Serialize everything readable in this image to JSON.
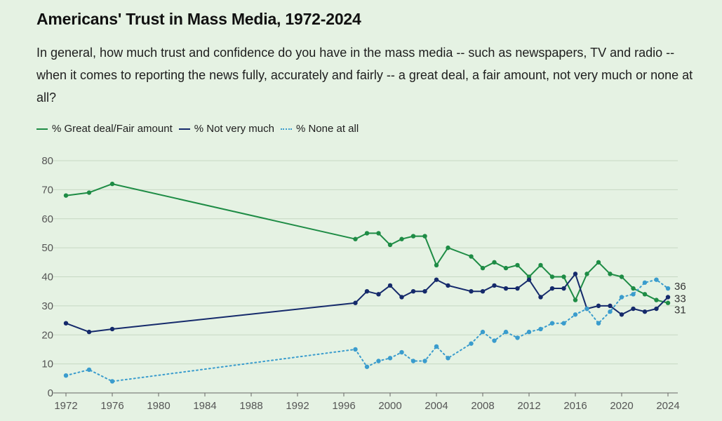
{
  "header": {
    "title": "Americans' Trust in Mass Media, 1972-2024",
    "subtitle": "In general, how much trust and confidence do you have in the mass media -- such as newspapers, TV and radio -- when it comes to reporting the news fully, accurately and fairly -- a great deal, a fair amount, not very much or none at all?"
  },
  "colors": {
    "great_deal": "#1e8c45",
    "not_very_much": "#152a6b",
    "none_at_all": "#3a9ccd",
    "grid": "#c6d8c3"
  },
  "chart_data": {
    "type": "line",
    "title": "Americans' Trust in Mass Media, 1972-2024",
    "xlabel": "",
    "ylabel": "",
    "xlim": [
      1972,
      2024
    ],
    "ylim": [
      0,
      80
    ],
    "yticks": [
      0,
      10,
      20,
      30,
      40,
      50,
      60,
      70,
      80
    ],
    "xticks": [
      1972,
      1976,
      1980,
      1984,
      1988,
      1992,
      1996,
      2000,
      2004,
      2008,
      2012,
      2016,
      2020,
      2024
    ],
    "legend_position": "top-left",
    "grid": true,
    "series": [
      {
        "name": "% Great deal/Fair amount",
        "style": "solid",
        "color_key": "great_deal",
        "end_label": "31",
        "x": [
          1972,
          1974,
          1976,
          1997,
          1998,
          1999,
          2000,
          2001,
          2002,
          2003,
          2004,
          2005,
          2007,
          2008,
          2009,
          2010,
          2011,
          2012,
          2013,
          2014,
          2015,
          2016,
          2017,
          2018,
          2019,
          2020,
          2021,
          2022,
          2023,
          2024
        ],
        "values": [
          68,
          69,
          72,
          53,
          55,
          55,
          51,
          53,
          54,
          54,
          44,
          50,
          47,
          43,
          45,
          43,
          44,
          40,
          44,
          40,
          40,
          32,
          41,
          45,
          41,
          40,
          36,
          34,
          32,
          31
        ]
      },
      {
        "name": "% Not very much",
        "style": "solid",
        "color_key": "not_very_much",
        "end_label": "33",
        "x": [
          1972,
          1974,
          1976,
          1997,
          1998,
          1999,
          2000,
          2001,
          2002,
          2003,
          2004,
          2005,
          2007,
          2008,
          2009,
          2010,
          2011,
          2012,
          2013,
          2014,
          2015,
          2016,
          2017,
          2018,
          2019,
          2020,
          2021,
          2022,
          2023,
          2024
        ],
        "values": [
          24,
          21,
          22,
          31,
          35,
          34,
          37,
          33,
          35,
          35,
          39,
          37,
          35,
          35,
          37,
          36,
          36,
          39,
          33,
          36,
          36,
          41,
          29,
          30,
          30,
          27,
          29,
          28,
          29,
          33
        ]
      },
      {
        "name": "% None at all",
        "style": "dotted",
        "color_key": "none_at_all",
        "end_label": "36",
        "x": [
          1972,
          1974,
          1976,
          1997,
          1998,
          1999,
          2000,
          2001,
          2002,
          2003,
          2004,
          2005,
          2007,
          2008,
          2009,
          2010,
          2011,
          2012,
          2013,
          2014,
          2015,
          2016,
          2017,
          2018,
          2019,
          2020,
          2021,
          2022,
          2023,
          2024
        ],
        "values": [
          6,
          8,
          4,
          15,
          9,
          11,
          12,
          14,
          11,
          11,
          16,
          12,
          17,
          21,
          18,
          21,
          19,
          21,
          22,
          24,
          24,
          27,
          29,
          24,
          28,
          33,
          34,
          38,
          39,
          36
        ]
      }
    ]
  }
}
